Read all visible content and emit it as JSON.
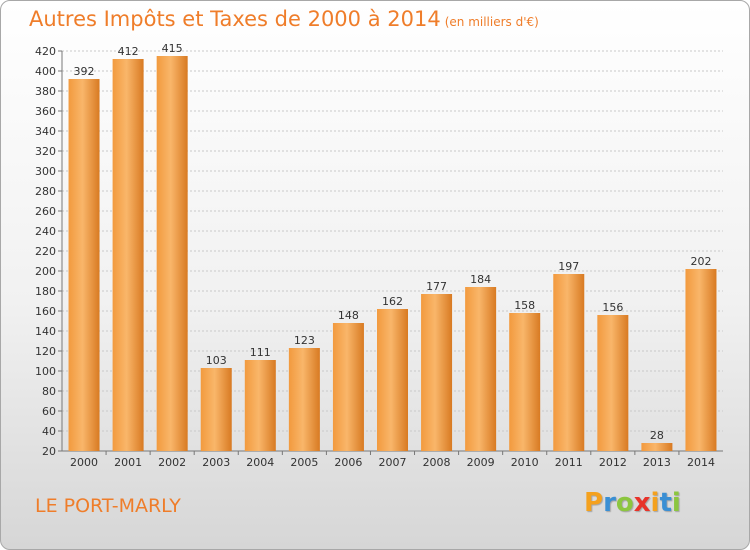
{
  "header": {
    "title": "Autres Impôts et Taxes de 2000 à 2014",
    "subtitle": "(en milliers d'€)"
  },
  "footer": {
    "commune": "LE PORT-MARLY",
    "logo": {
      "letters": [
        "P",
        "r",
        "o",
        "x",
        "i",
        "t",
        "i"
      ],
      "colors": [
        "#f4a11e",
        "#3a8fd4",
        "#8cc63f",
        "#e8332a",
        "#f4a11e",
        "#3a8fd4",
        "#8cc63f"
      ]
    }
  },
  "chart_data": {
    "type": "bar",
    "title": "Autres Impôts et Taxes de 2000 à 2014",
    "subtitle": "(en milliers d'€)",
    "xlabel": "",
    "ylabel": "",
    "categories": [
      "2000",
      "2001",
      "2002",
      "2003",
      "2004",
      "2005",
      "2006",
      "2007",
      "2008",
      "2009",
      "2010",
      "2011",
      "2012",
      "2013",
      "2014"
    ],
    "values": [
      392,
      412,
      415,
      103,
      111,
      123,
      148,
      162,
      177,
      184,
      158,
      197,
      156,
      28,
      202
    ],
    "ylim": [
      20,
      420
    ],
    "yticks": [
      "20",
      "40",
      "60",
      "80",
      "100",
      "120",
      "140",
      "160",
      "180",
      "200",
      "220",
      "240",
      "260",
      "280",
      "300",
      "320",
      "340",
      "360",
      "380",
      "400",
      "420"
    ],
    "grid": true,
    "legend": "none",
    "bar_color": "#f29a3e",
    "bar_color_light": "#f9b66a",
    "bar_color_dark": "#d87a22"
  }
}
